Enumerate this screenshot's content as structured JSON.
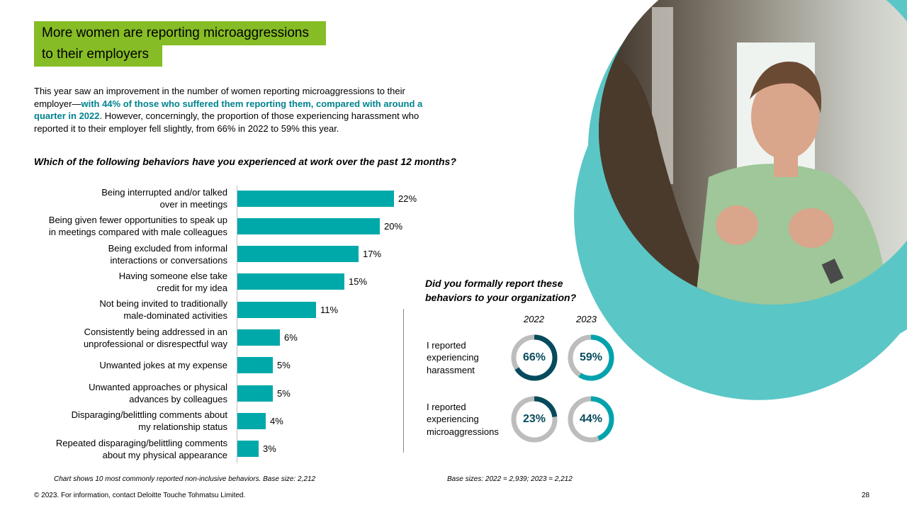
{
  "title": {
    "line1": "More women are reporting microaggressions",
    "line2": "to their employers"
  },
  "intro": {
    "part1": "This year saw an improvement in the number of women reporting microaggressions to their employer—",
    "highlight": "with 44% of those who suffered them reporting them, compared with around a quarter in 2022",
    "part2": ". However, concerningly, the proportion of those experiencing harassment who reported it to their employer fell slightly, from 66% in 2022 to 59% this year."
  },
  "question": "Which of the following behaviors have you experienced at work over the past 12 months?",
  "chart_data": [
    {
      "type": "bar",
      "orientation": "horizontal",
      "title": "Which of the following behaviors have you experienced at work over the past 12 months?",
      "categories": [
        [
          "Being interrupted and/or talked",
          "over in meetings"
        ],
        [
          "Being given fewer opportunities to speak up",
          "in meetings compared with male colleagues"
        ],
        [
          "Being excluded from informal",
          "interactions or conversations"
        ],
        [
          "Having someone else take",
          "credit for my idea"
        ],
        [
          "Not being invited to traditionally",
          "male-dominated activities"
        ],
        [
          "Consistently being addressed in an",
          "unprofessional or disrespectful way"
        ],
        [
          "Unwanted jokes at my expense"
        ],
        [
          "Unwanted approaches or physical",
          "advances by colleagues"
        ],
        [
          "Disparaging/belittling comments about",
          "my relationship status"
        ],
        [
          "Repeated disparaging/belittling comments",
          "about my physical appearance"
        ]
      ],
      "values": [
        22,
        20,
        17,
        15,
        11,
        6,
        5,
        5,
        4,
        3
      ],
      "value_labels": [
        "22%",
        "20%",
        "17%",
        "15%",
        "11%",
        "6%",
        "5%",
        "5%",
        "4%",
        "3%"
      ],
      "unit": "%",
      "bar_color": "#00a9a9",
      "footnote": "Chart shows 10 most commonly reported non-inclusive behaviors. Base size: 2,212"
    },
    {
      "type": "donut",
      "title": "Did you formally report these behaviors to your organization?",
      "title_lines": [
        "Did you formally report these",
        "behaviors to your organization?"
      ],
      "years": [
        "2022",
        "2023"
      ],
      "rows": [
        {
          "label": [
            "I reported",
            "experiencing",
            "harassment"
          ],
          "values": [
            66,
            59
          ],
          "value_labels": [
            "66%",
            "59%"
          ]
        },
        {
          "label": [
            "I reported",
            "experiencing",
            "microaggressions"
          ],
          "values": [
            23,
            44
          ],
          "value_labels": [
            "23%",
            "44%"
          ]
        }
      ],
      "colors": {
        "2022": "#064b5c",
        "2023": "#00a3ad",
        "remainder": "#bdbdbd"
      },
      "footnote": "Base sizes: 2022 = 2,939; 2023 = 2,212"
    }
  ],
  "footer": {
    "copyright": "© 2023. For information, contact Deloitte Touche Tohmatsu Limited.",
    "page": "28"
  },
  "colors": {
    "title_bg": "#86bc25",
    "accent": "#00838f",
    "ring": "#5bc6c6"
  },
  "image": {
    "alt": "photo-of-woman-gesturing"
  }
}
